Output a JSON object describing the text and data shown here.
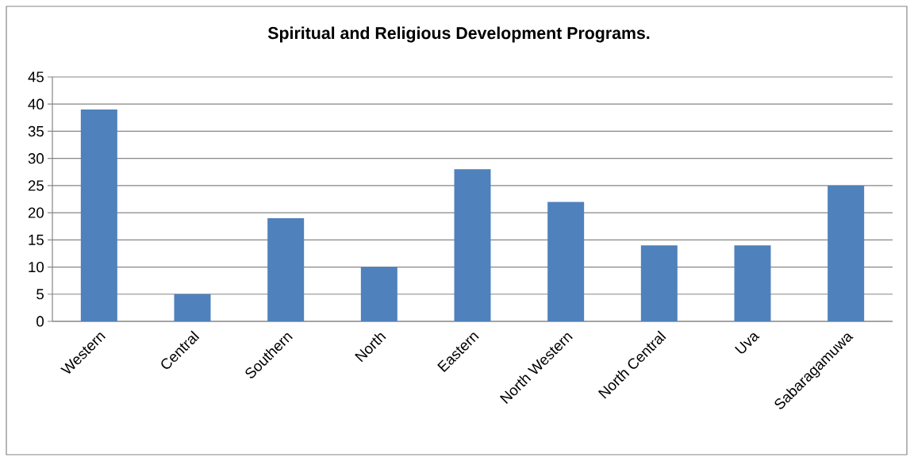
{
  "chart_data": {
    "type": "bar",
    "title": "Spiritual and Religious Development Programs.",
    "categories": [
      "Western",
      "Central",
      "Southern",
      "North",
      "Eastern",
      "North Western",
      "North Central",
      "Uva",
      "Sabaragamuwa"
    ],
    "values": [
      39,
      5,
      19,
      10,
      28,
      22,
      14,
      14,
      25
    ],
    "color": "#4f81bd",
    "ylim": [
      0,
      45
    ],
    "yticks": [
      0,
      5,
      10,
      15,
      20,
      25,
      30,
      35,
      40,
      45
    ],
    "grid": "y"
  }
}
